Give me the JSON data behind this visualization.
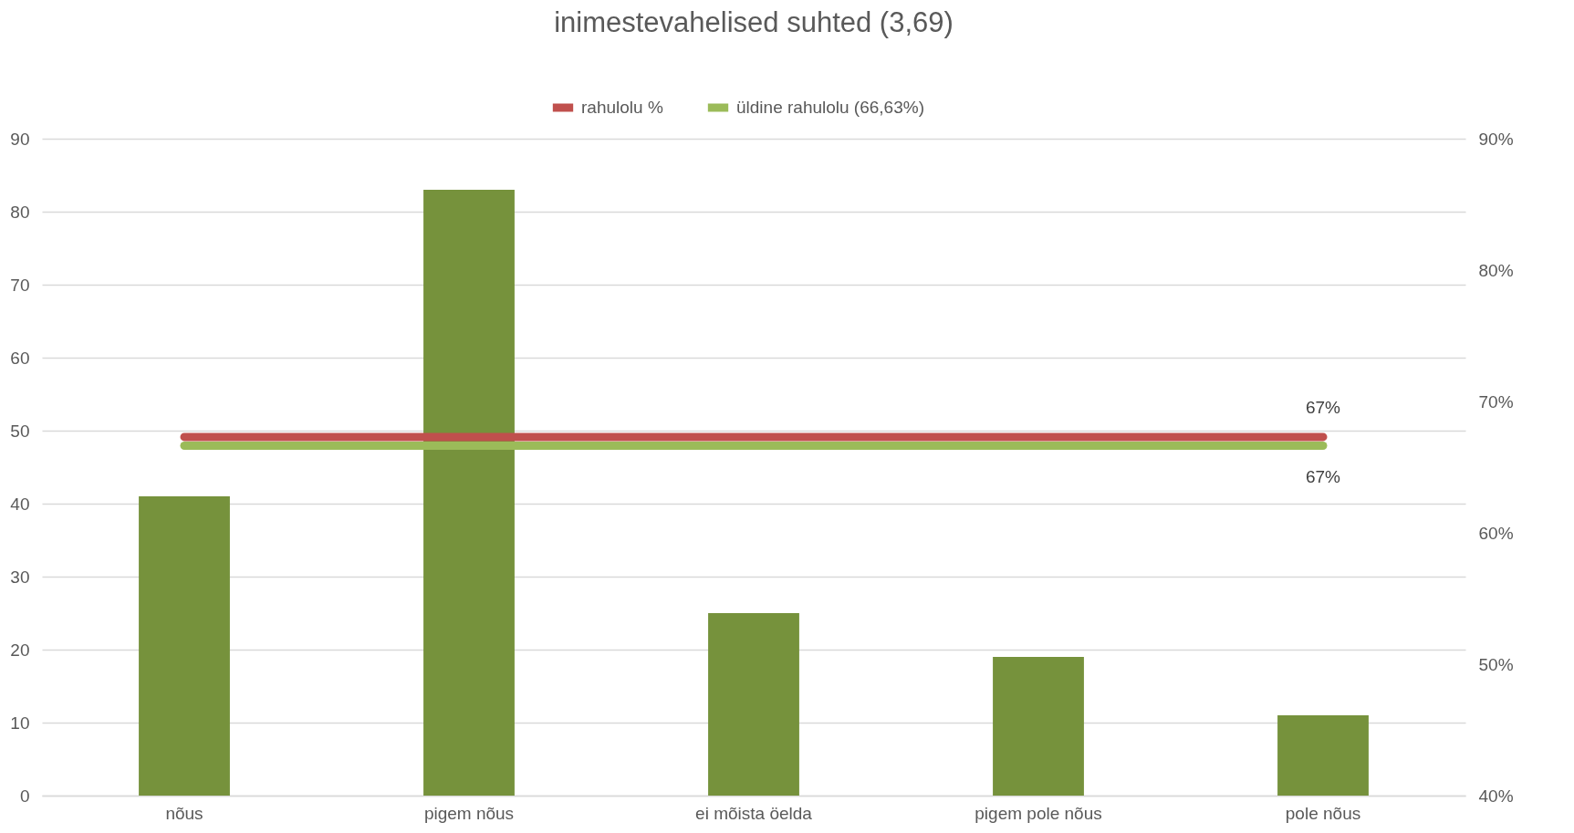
{
  "chart_data": {
    "type": "bar",
    "title": "inimestevahelised suhted (3,69)",
    "categories": [
      "nõus",
      "pigem nõus",
      "ei mõista öelda",
      "pigem pole nõus",
      "pole nõus"
    ],
    "series": [
      {
        "color": "#76923c",
        "values": [
          41,
          83,
          25,
          19,
          11
        ]
      },
      {
        "type": "line",
        "name": "rahulolu %",
        "color": "#c0504d",
        "axis": "y2",
        "values": [
          67.3,
          67.3,
          67.3,
          67.3,
          67.3
        ],
        "value_labels": [
          null,
          null,
          null,
          null,
          "67%"
        ]
      },
      {
        "type": "line",
        "name": "üldine rahulolu (66,63%)",
        "color": "#9bbb59",
        "axis": "y2",
        "values": [
          66.63,
          66.63,
          66.63,
          66.63,
          66.63
        ],
        "value_labels": [
          null,
          null,
          null,
          null,
          "67%"
        ]
      }
    ],
    "ylim": [
      0,
      90
    ],
    "yticks": [
      0,
      10,
      20,
      30,
      40,
      50,
      60,
      70,
      80,
      90
    ],
    "y2lim": [
      40,
      90
    ],
    "y2ticks": [
      {
        "value": 40,
        "label": "40%"
      },
      {
        "value": 50,
        "label": "50%"
      },
      {
        "value": 60,
        "label": "60%"
      },
      {
        "value": 70,
        "label": "70%"
      },
      {
        "value": 80,
        "label": "80%"
      },
      {
        "value": 90,
        "label": "90%"
      }
    ],
    "grid": "y",
    "legend": "top"
  }
}
